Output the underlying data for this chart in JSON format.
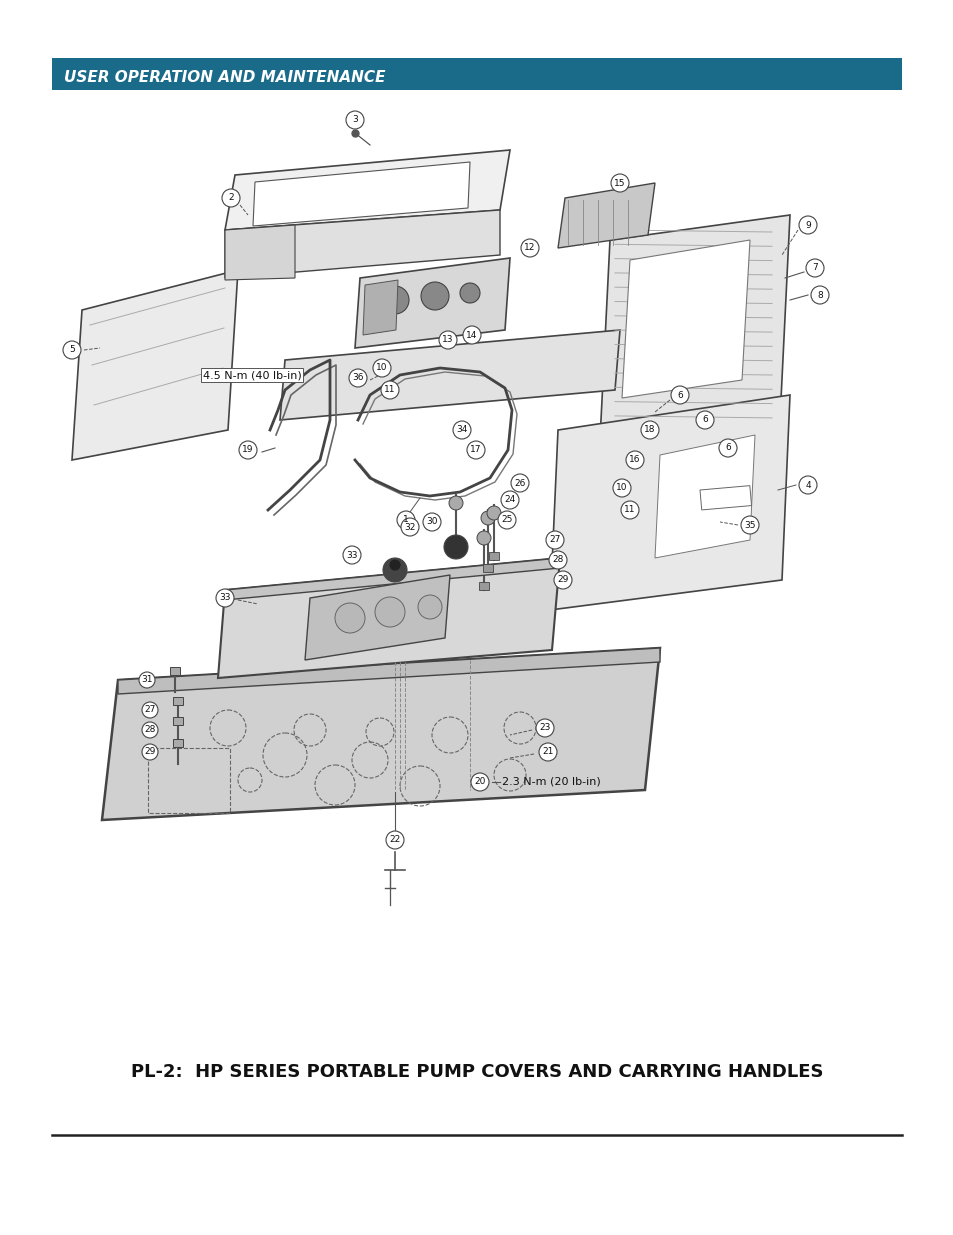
{
  "header_text": "USER OPERATION AND MAINTENANCE",
  "header_bg_color": "#1a6b8a",
  "header_text_color": "#ffffff",
  "title_text": "PL-2:  HP SERIES PORTABLE PUMP COVERS AND CARRYING HANDLES",
  "bg_color": "#ffffff",
  "note1": "4.5 N-m (40 lb-in)",
  "note2": "2.3 N-m (20 lb-in)",
  "footer_line_color": "#222222",
  "line_color": "#444444",
  "fill_light": "#e8e8e8",
  "fill_mid": "#d0d0d0",
  "fill_dark": "#b8b8b8"
}
